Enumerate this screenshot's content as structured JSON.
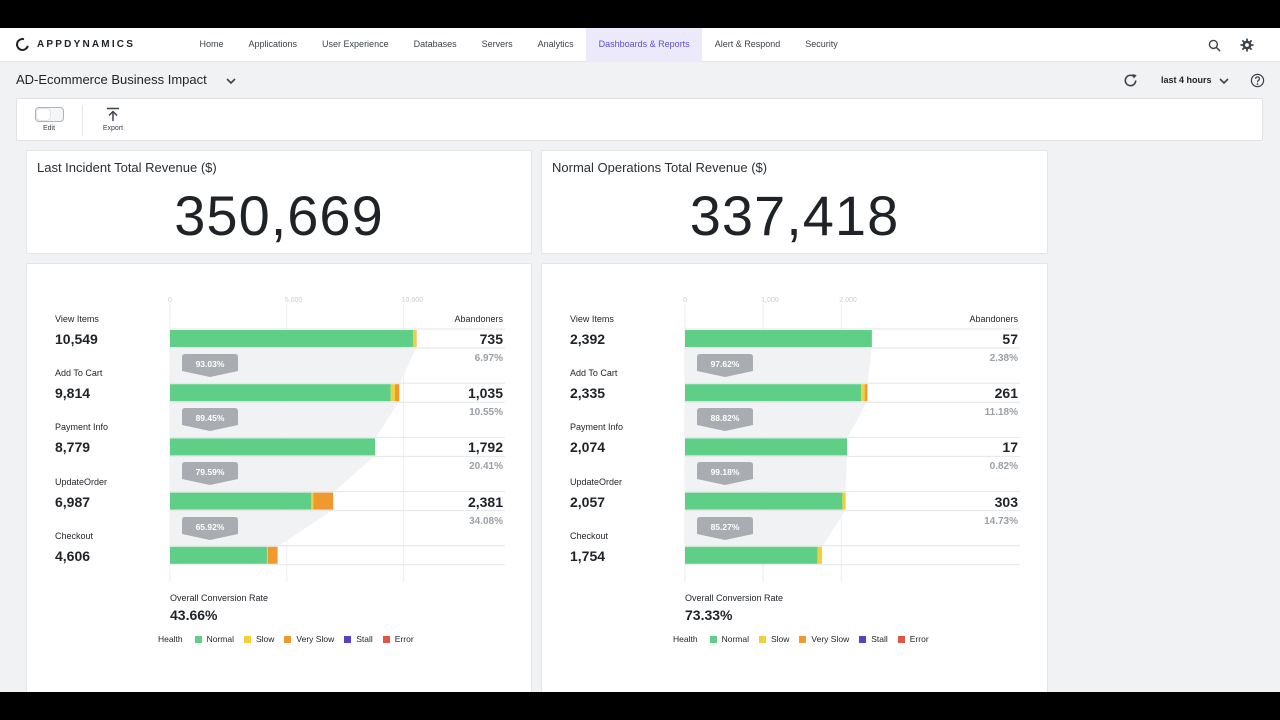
{
  "app": {
    "brand": "APPDYNAMICS"
  },
  "nav": {
    "items": [
      "Home",
      "Applications",
      "User Experience",
      "Databases",
      "Servers",
      "Analytics",
      "Dashboards & Reports",
      "Alert & Respond",
      "Security"
    ],
    "active": "Dashboards & Reports"
  },
  "dashboard": {
    "title": "AD-Ecommerce Business Impact",
    "timerange": "last 4 hours"
  },
  "toolbar": {
    "edit_label": "Edit",
    "export_label": "Export"
  },
  "kpis": [
    {
      "title": "Last Incident Total Revenue ($)",
      "value": "350,669"
    },
    {
      "title": "Normal Operations Total Revenue ($)",
      "value": "337,418"
    }
  ],
  "colors": {
    "normal": "#5fcf87",
    "slow": "#f2cf3b",
    "very_slow": "#f0992f",
    "stall": "#5b3fc7",
    "error": "#e05543",
    "accent": "#5b4fdb",
    "pill": "#a9acb0"
  },
  "legend": {
    "title": "Health",
    "items": [
      {
        "label": "Normal",
        "color": "#5fcf87"
      },
      {
        "label": "Slow",
        "color": "#f2cf3b"
      },
      {
        "label": "Very Slow",
        "color": "#f0992f"
      },
      {
        "label": "Stall",
        "color": "#5b3fc7"
      },
      {
        "label": "Error",
        "color": "#e05543"
      }
    ]
  },
  "funnels": [
    {
      "axis_ticks": [
        "0",
        "5,000",
        "10,000"
      ],
      "axis_max": 10700,
      "tick_values": [
        0,
        5000,
        10000
      ],
      "abandoners_label": "Abandoners",
      "overall_label": "Overall Conversion Rate",
      "overall_value": "43.66%",
      "stages": [
        {
          "name": "View Items",
          "count": "10,549",
          "value": 10549,
          "normal": 10400,
          "slow": 120,
          "very_slow": 29,
          "abandoners": "735",
          "abandon_pct": "6.97%",
          "conversion": "93.03%"
        },
        {
          "name": "Add To Cart",
          "count": "9,814",
          "value": 9814,
          "normal": 9450,
          "slow": 180,
          "very_slow": 184,
          "abandoners": "1,035",
          "abandon_pct": "10.55%",
          "conversion": "89.45%"
        },
        {
          "name": "Payment Info",
          "count": "8,779",
          "value": 8779,
          "normal": 8779,
          "slow": 0,
          "very_slow": 0,
          "abandoners": "1,792",
          "abandon_pct": "20.41%",
          "conversion": "79.59%"
        },
        {
          "name": "UpdateOrder",
          "count": "6,987",
          "value": 6987,
          "normal": 6050,
          "slow": 80,
          "very_slow": 857,
          "abandoners": "2,381",
          "abandon_pct": "34.08%",
          "conversion": "65.92%"
        },
        {
          "name": "Checkout",
          "count": "4,606",
          "value": 4606,
          "normal": 4150,
          "slow": 40,
          "very_slow": 416,
          "abandoners": "",
          "abandon_pct": "",
          "conversion": ""
        }
      ]
    },
    {
      "axis_ticks": [
        "0",
        "1,000",
        "2,000"
      ],
      "axis_max": 3200,
      "tick_values": [
        0,
        1000,
        2000
      ],
      "abandoners_label": "Abandoners",
      "overall_label": "Overall Conversion Rate",
      "overall_value": "73.33%",
      "stages": [
        {
          "name": "View Items",
          "count": "2,392",
          "value": 2392,
          "normal": 2392,
          "slow": 0,
          "very_slow": 0,
          "abandoners": "57",
          "abandon_pct": "2.38%",
          "conversion": "97.62%"
        },
        {
          "name": "Add To Cart",
          "count": "2,335",
          "value": 2335,
          "normal": 2255,
          "slow": 45,
          "very_slow": 35,
          "abandoners": "261",
          "abandon_pct": "11.18%",
          "conversion": "88.82%"
        },
        {
          "name": "Payment Info",
          "count": "2,074",
          "value": 2074,
          "normal": 2074,
          "slow": 0,
          "very_slow": 0,
          "abandoners": "17",
          "abandon_pct": "0.82%",
          "conversion": "99.18%"
        },
        {
          "name": "UpdateOrder",
          "count": "2,057",
          "value": 2057,
          "normal": 2015,
          "slow": 42,
          "very_slow": 0,
          "abandoners": "303",
          "abandon_pct": "14.73%",
          "conversion": "85.27%"
        },
        {
          "name": "Checkout",
          "count": "1,754",
          "value": 1754,
          "normal": 1695,
          "slow": 59,
          "very_slow": 0,
          "abandoners": "",
          "abandon_pct": "",
          "conversion": ""
        }
      ]
    }
  ]
}
